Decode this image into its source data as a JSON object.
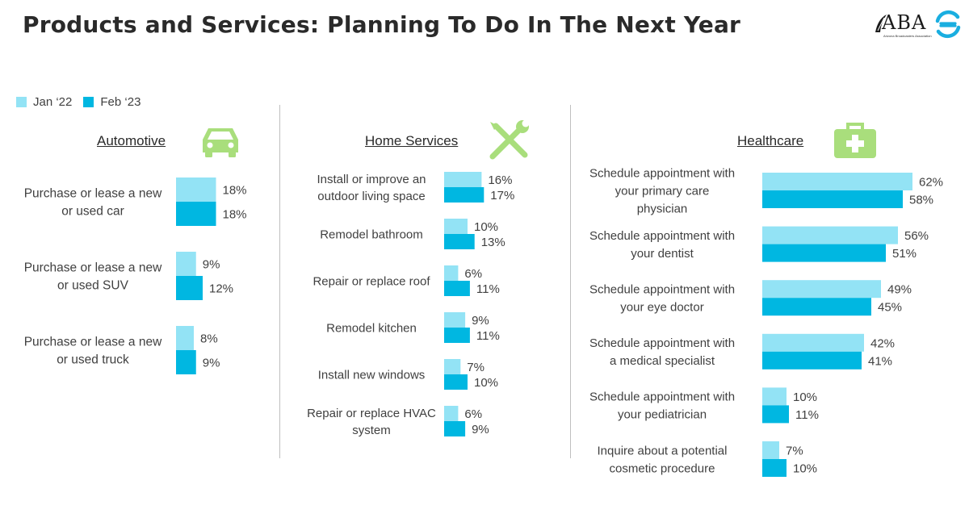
{
  "title": "Products and Services: Planning To Do In The Next Year",
  "logos": {
    "aba_word": "ABA",
    "aba_tagline": "Arizona Broadcasters Association",
    "s_logo": "s-swirl-logo"
  },
  "legend": [
    {
      "label": "Jan ‘22",
      "color": "#93e3f5"
    },
    {
      "label": "Feb ‘23",
      "color": "#00b7e1"
    }
  ],
  "icons": {
    "automotive": "car-icon",
    "home_services": "tools-icon",
    "healthcare": "first-aid-kit-icon",
    "icon_color": "#a9de7c"
  },
  "chart_data": [
    {
      "type": "bar",
      "orientation": "horizontal",
      "title": "Automotive",
      "categories": [
        "Purchase or lease a new or used car",
        "Purchase or lease a new or used SUV",
        "Purchase or lease a new or used truck"
      ],
      "series": [
        {
          "name": "Jan ‘22",
          "values": [
            18,
            9,
            8
          ]
        },
        {
          "name": "Feb ‘23",
          "values": [
            18,
            12,
            9
          ]
        }
      ],
      "unit": "%"
    },
    {
      "type": "bar",
      "orientation": "horizontal",
      "title": "Home Services",
      "categories": [
        "Install or improve an outdoor living space",
        "Remodel bathroom",
        "Repair or replace roof",
        "Remodel kitchen",
        "Install new windows",
        "Repair or replace HVAC system"
      ],
      "series": [
        {
          "name": "Jan ‘22",
          "values": [
            16,
            10,
            6,
            9,
            7,
            6
          ]
        },
        {
          "name": "Feb ‘23",
          "values": [
            17,
            13,
            11,
            11,
            10,
            9
          ]
        }
      ],
      "unit": "%"
    },
    {
      "type": "bar",
      "orientation": "horizontal",
      "title": "Healthcare",
      "categories": [
        "Schedule appointment with your primary care physician",
        "Schedule appointment with your dentist",
        "Schedule appointment with your eye doctor",
        "Schedule appointment with a medical specialist",
        "Schedule appointment with your pediatrician",
        "Inquire about a potential cosmetic procedure"
      ],
      "series": [
        {
          "name": "Jan ‘22",
          "values": [
            62,
            56,
            49,
            42,
            10,
            7
          ]
        },
        {
          "name": "Feb ‘23",
          "values": [
            58,
            51,
            45,
            41,
            11,
            10
          ]
        }
      ],
      "unit": "%"
    }
  ]
}
